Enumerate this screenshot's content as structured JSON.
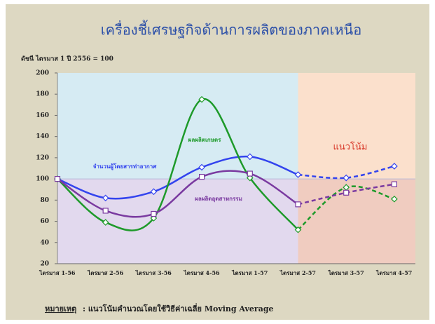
{
  "chart_data": {
    "type": "line",
    "title": "เครื่องชี้เศรษฐกิจด้านการผลิตของภาคเหนือ",
    "subtitle": "ดัชนี ไตรมาส 1 ปี 2556 = 100",
    "categories": [
      "ไตรมาส 1-56",
      "ไตรมาส 2-56",
      "ไตรมาส 3-56",
      "ไตรมาส 4-56",
      "ไตรมาส 1-57",
      "ไตรมาส 2-57",
      "ไตรมาส 3-57",
      "ไตรมาส 4-57"
    ],
    "series": [
      {
        "name": "จำนวนผู้โดยสารท่าอากาศ",
        "color": "#3344ee",
        "marker": "diamond",
        "values": [
          100,
          82,
          88,
          111,
          121,
          104,
          101,
          112
        ]
      },
      {
        "name": "ผลผลิตเกษตร",
        "color": "#1e9a2a",
        "marker": "diamond",
        "values": [
          100,
          59,
          63,
          175,
          101,
          52,
          92,
          81
        ]
      },
      {
        "name": "ผลผลิตอุตสาหกรรม",
        "color": "#7a3aa0",
        "marker": "square",
        "values": [
          100,
          70,
          67,
          102,
          105,
          76,
          87,
          95
        ]
      }
    ],
    "trend_start_index": 5,
    "reference_value": 100,
    "trend_label": "แนวโน้ม",
    "ylim": [
      20,
      200
    ],
    "yticks": [
      20,
      40,
      60,
      80,
      100,
      120,
      140,
      160,
      180,
      200
    ],
    "note_label": "หมายเหตุ",
    "note": ": แนวโน้มคำนวณโดยใช้วิธีค่าเฉลี่ย Moving Average"
  }
}
